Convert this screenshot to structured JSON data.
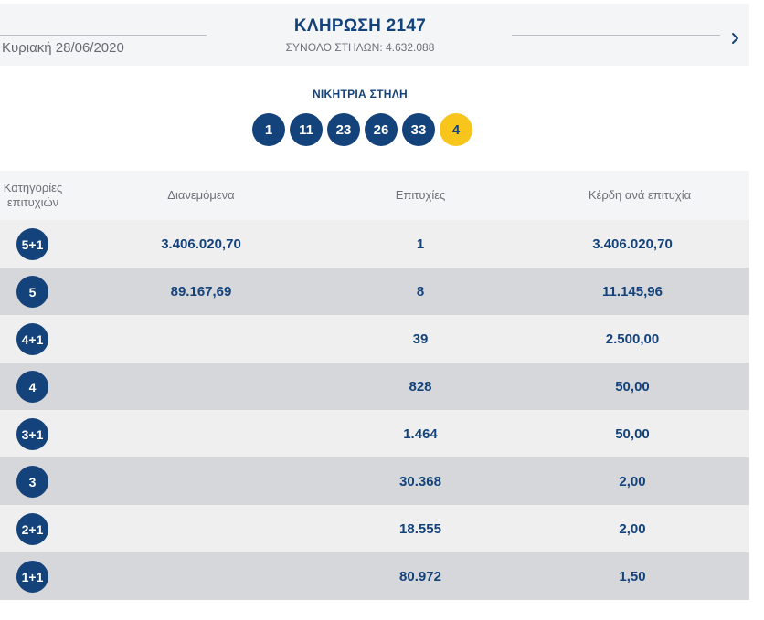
{
  "header": {
    "date": "Κυριακή 28/06/2020",
    "title": "ΚΛΗΡΩΣΗ 2147",
    "subtitle": "ΣΥΝΟΛΟ ΣΤΗΛΩΝ: 4.632.088",
    "next_icon": "chevron-right-icon"
  },
  "winning": {
    "label": "ΝΙΚΗΤΡΙΑ ΣΤΗΛΗ",
    "numbers": [
      "1",
      "11",
      "23",
      "26",
      "33"
    ],
    "joker": "4",
    "colors": {
      "number": "#14427a",
      "joker": "#f8c51c"
    }
  },
  "table": {
    "headers": {
      "category": "Κατηγορίες επιτυχιών",
      "distributed": "Διανεμόμενα",
      "winners": "Επιτυχίες",
      "prize": "Κέρδη ανά επιτυχία"
    },
    "rows": [
      {
        "category": "5+1",
        "distributed": "3.406.020,70",
        "winners": "1",
        "prize": "3.406.020,70"
      },
      {
        "category": "5",
        "distributed": "89.167,69",
        "winners": "8",
        "prize": "11.145,96"
      },
      {
        "category": "4+1",
        "distributed": "",
        "winners": "39",
        "prize": "2.500,00"
      },
      {
        "category": "4",
        "distributed": "",
        "winners": "828",
        "prize": "50,00"
      },
      {
        "category": "3+1",
        "distributed": "",
        "winners": "1.464",
        "prize": "50,00"
      },
      {
        "category": "3",
        "distributed": "",
        "winners": "30.368",
        "prize": "2,00"
      },
      {
        "category": "2+1",
        "distributed": "",
        "winners": "18.555",
        "prize": "2,00"
      },
      {
        "category": "1+1",
        "distributed": "",
        "winners": "80.972",
        "prize": "1,50"
      }
    ]
  }
}
